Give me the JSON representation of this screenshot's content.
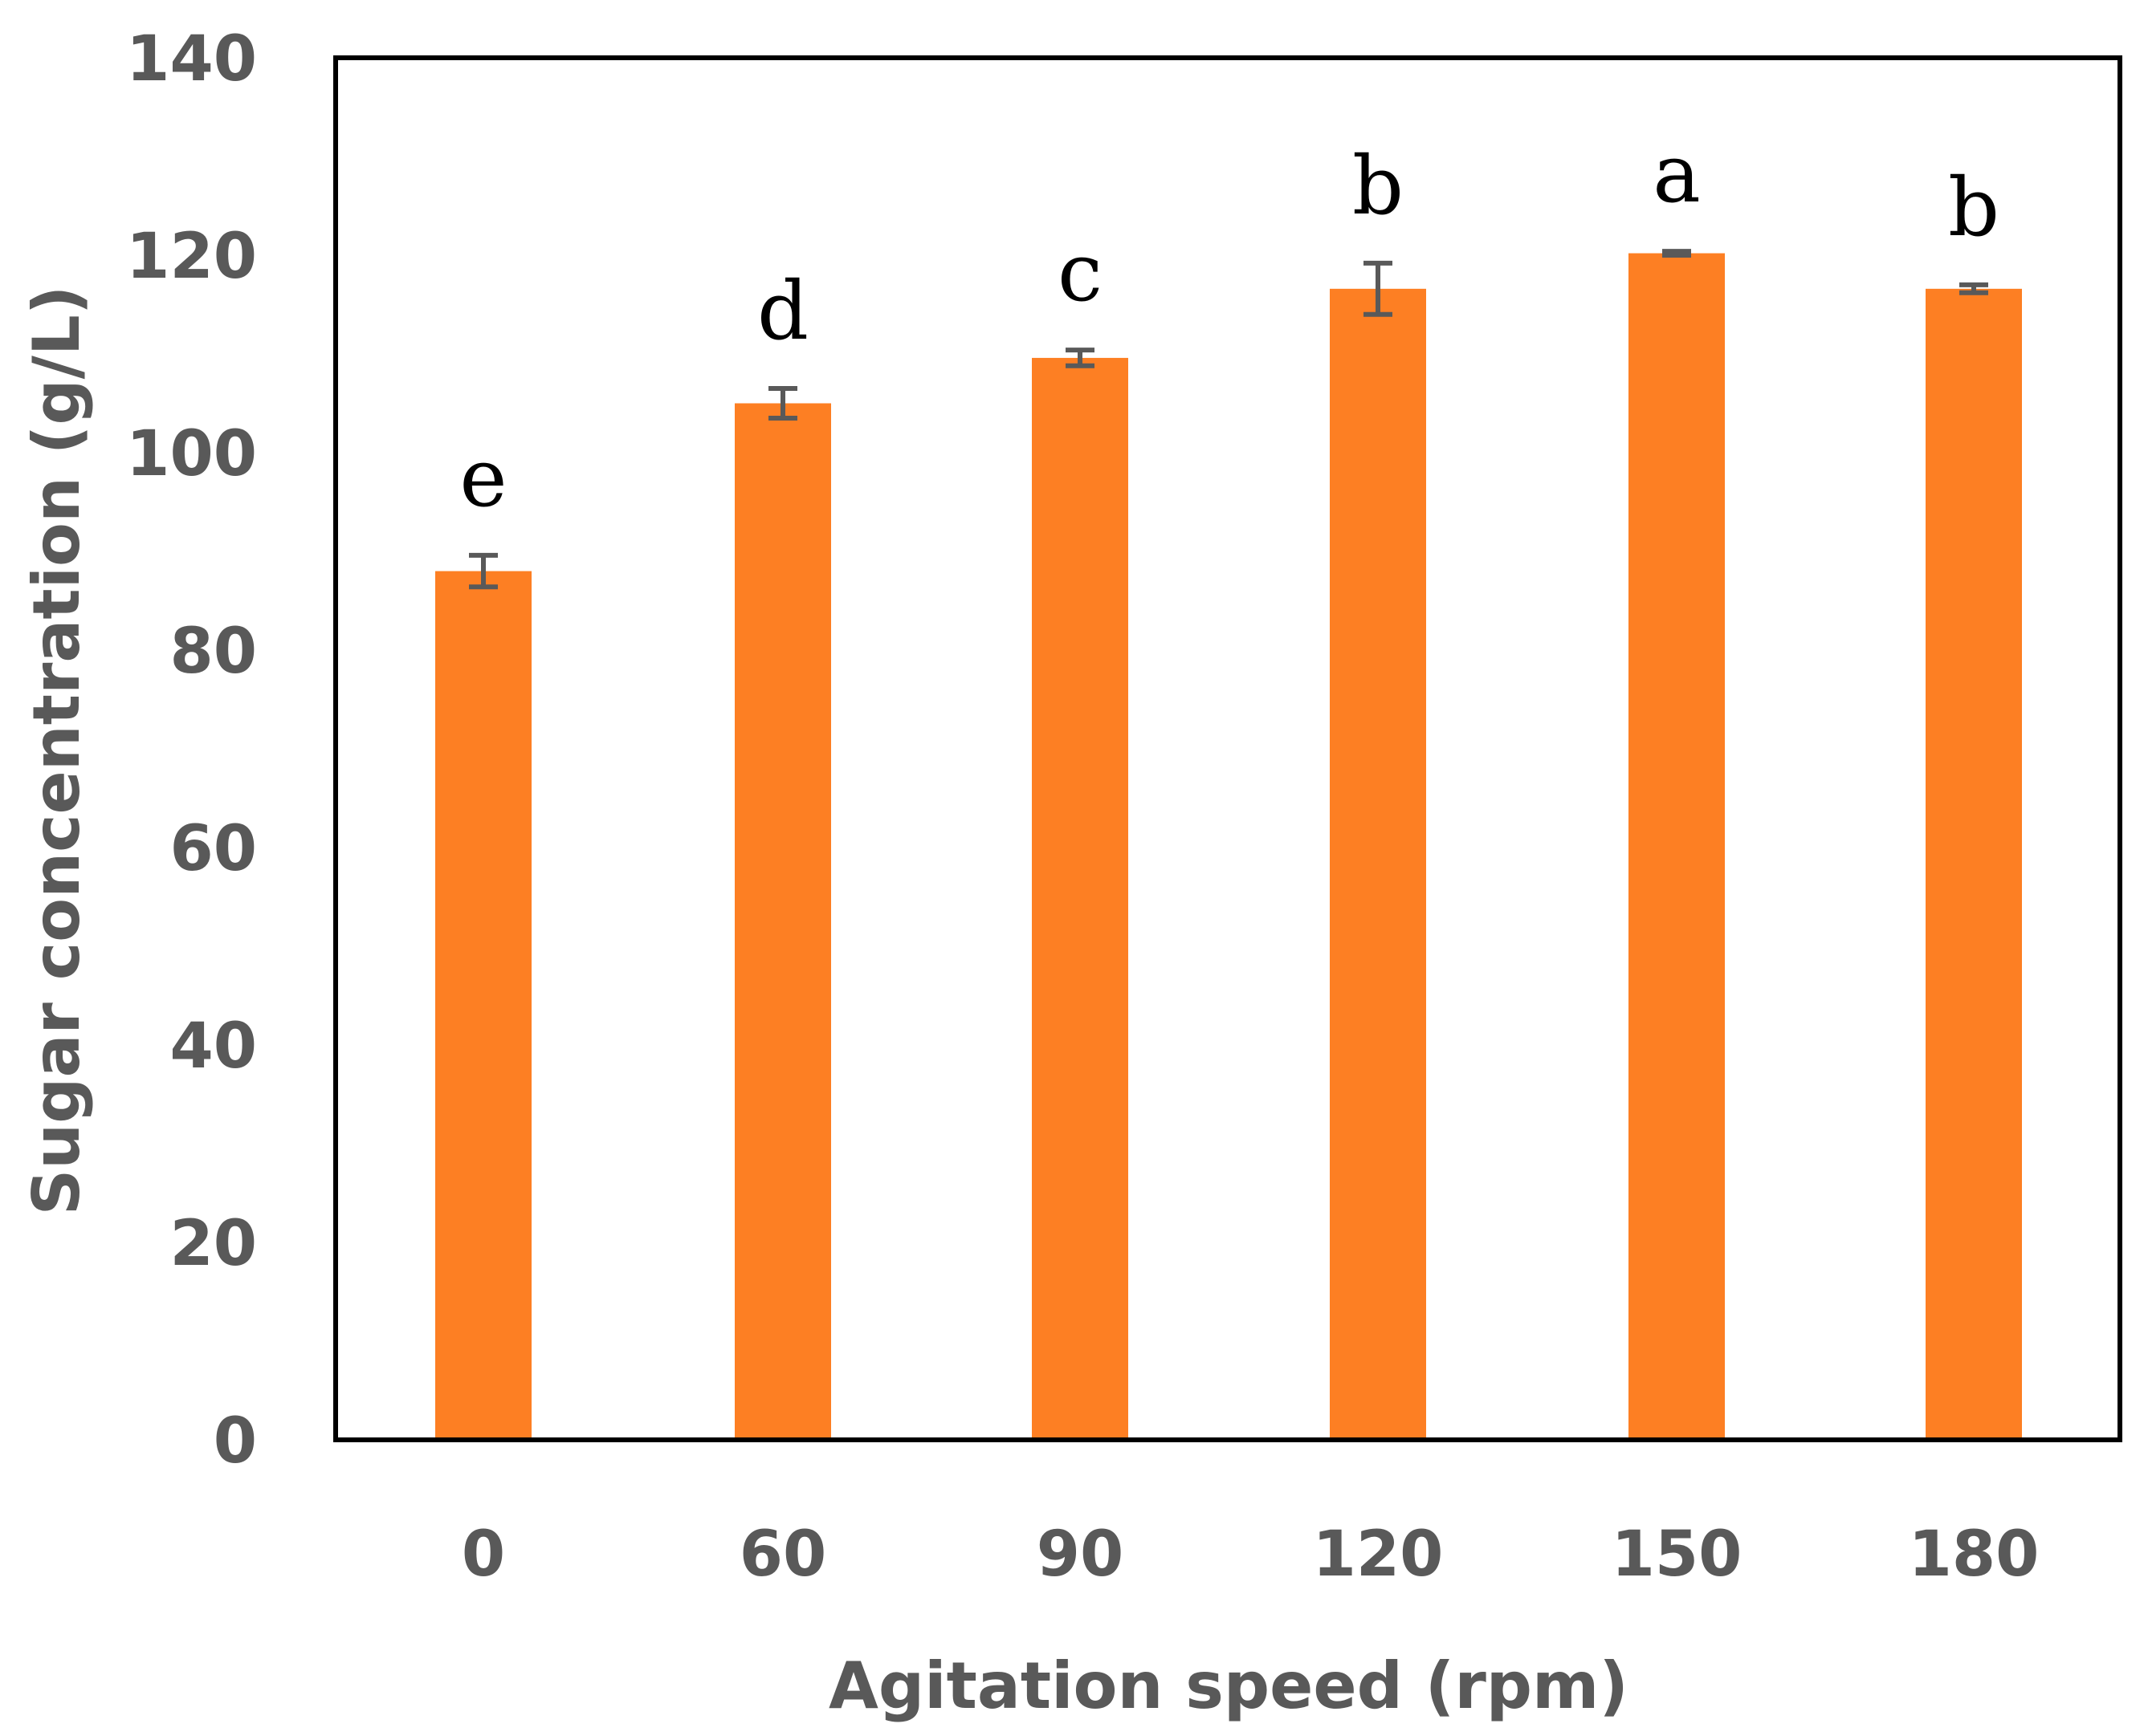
{
  "chart_data": {
    "type": "bar",
    "title": "",
    "xlabel": "Agitation speed (rpm)",
    "ylabel": "Sugar concentration (g/L)",
    "categories": [
      "0",
      "60",
      "90",
      "120",
      "150",
      "180"
    ],
    "values": [
      88,
      105,
      109.6,
      116.6,
      120.2,
      116.6
    ],
    "errors": [
      1.6,
      1.5,
      0.8,
      2.6,
      0.2,
      0.4
    ],
    "significance": [
      "e",
      "d",
      "c",
      "b",
      "a",
      "b"
    ],
    "ylim": [
      0,
      140
    ],
    "yticks": [
      0,
      20,
      40,
      60,
      80,
      100,
      120,
      140
    ],
    "grid": false,
    "legend": "none",
    "colors": {
      "bar": "#fd7f23",
      "error": "#595959",
      "frame": "#000000",
      "text": "#595959"
    }
  }
}
